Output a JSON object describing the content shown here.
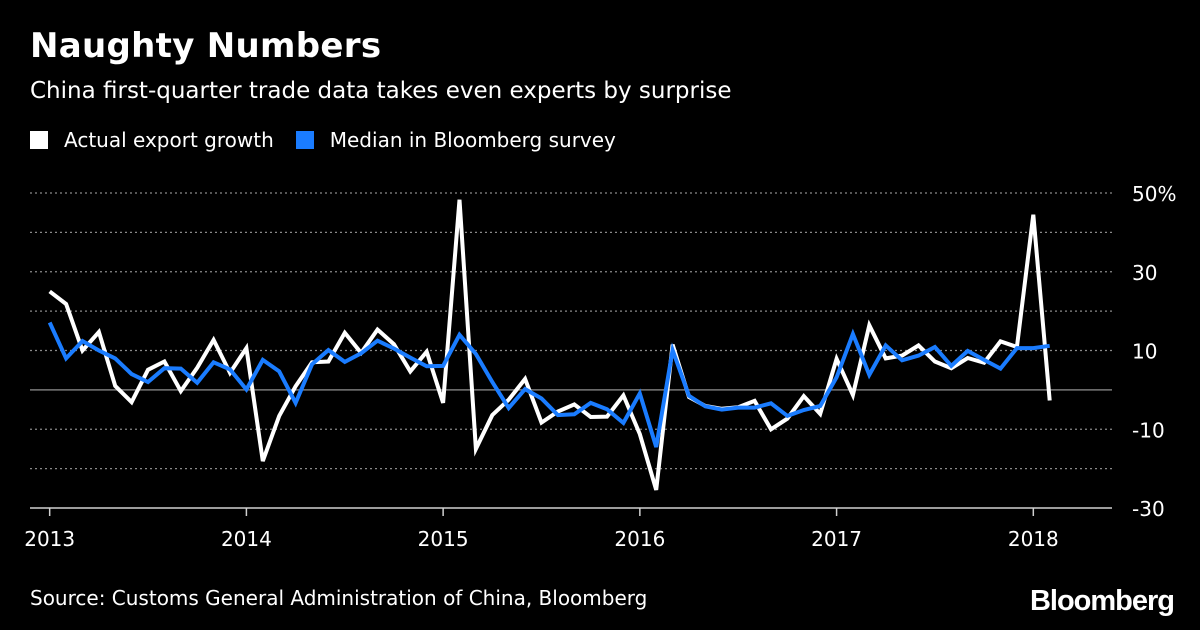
{
  "title": "Naughty Numbers",
  "subtitle": "China first-quarter trade data takes even experts by surprise",
  "source": "Source: Customs General Administration of China, Bloomberg",
  "logo": "Bloomberg",
  "colors": {
    "background": "#000000",
    "actual": "#ffffff",
    "median": "#1a7cff",
    "grid": "#8a8a8a",
    "zero": "#7a7a7a",
    "text": "#ffffff"
  },
  "chart_data": {
    "type": "line",
    "title": "Naughty Numbers",
    "subtitle": "China first-quarter trade data takes even experts by surprise",
    "xlabel": "",
    "ylabel": "",
    "x_start": 2013.0,
    "x_step": 0.08333,
    "xlim": [
      2012.9,
      2018.4
    ],
    "ylim": [
      -30,
      50
    ],
    "yticks": [
      50,
      30,
      10,
      -10,
      -30
    ],
    "ytick_labels": [
      "50%",
      "30",
      "10",
      "-10",
      "-30"
    ],
    "minor_grid": [
      40,
      20,
      0,
      -20
    ],
    "xticks": [
      2013,
      2014,
      2015,
      2016,
      2017,
      2018
    ],
    "xtick_labels": [
      "2013",
      "2014",
      "2015",
      "2016",
      "2017",
      "2018"
    ],
    "grid": true,
    "legend_position": "top-left",
    "series": [
      {
        "name": "Actual export growth",
        "color": "#ffffff",
        "values": [
          25,
          21.8,
          10,
          14.7,
          1,
          -3.1,
          5.1,
          7.2,
          -0.3,
          5.6,
          12.7,
          4.3,
          10.6,
          -18.1,
          -6.6,
          0.9,
          7,
          7.2,
          14.5,
          9.4,
          15.3,
          11.6,
          4.7,
          9.7,
          -3.3,
          48.3,
          -15,
          -6.4,
          -2.5,
          2.8,
          -8.3,
          -5.5,
          -3.7,
          -6.9,
          -6.8,
          -1.4,
          -11.2,
          -25.4,
          11.5,
          -1.8,
          -4.1,
          -4.8,
          -4.4,
          -2.8,
          -10,
          -7.3,
          -1.6,
          -6.1,
          7.9,
          -1.3,
          16.4,
          8,
          8.7,
          11.3,
          7.2,
          5.5,
          8.1,
          6.9,
          12.3,
          10.9,
          44.5,
          -2.7
        ]
      },
      {
        "name": "Median in Bloomberg survey",
        "color": "#1a7cff",
        "values": [
          17.1,
          8,
          12.4,
          10,
          8,
          4,
          2,
          5.5,
          5.4,
          1.8,
          7,
          5.2,
          0.1,
          7.6,
          4.7,
          -3.3,
          6.5,
          10.1,
          7.1,
          9.3,
          12.5,
          10.5,
          8.2,
          6,
          6.1,
          14,
          9.1,
          2,
          -4.6,
          0.2,
          -2.2,
          -6.4,
          -6.2,
          -3.3,
          -4.9,
          -8.4,
          -0.9,
          -14.5,
          10.1,
          -1.5,
          -4.2,
          -5,
          -4.5,
          -4.5,
          -3.4,
          -6.6,
          -5.1,
          -4.1,
          3.2,
          14.2,
          3.8,
          11.3,
          7.5,
          8.7,
          10.9,
          6.1,
          9.9,
          7.6,
          5.4,
          10.6,
          10.6,
          11.2
        ]
      }
    ]
  }
}
